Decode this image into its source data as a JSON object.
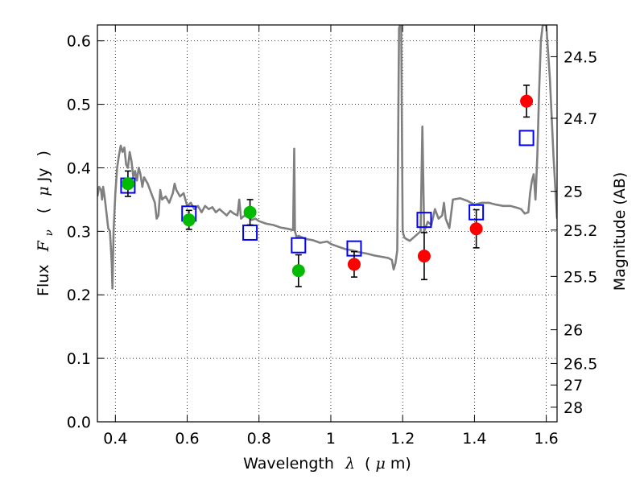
{
  "chart_data": {
    "type": "scatter",
    "title": "",
    "xlabel_parts": [
      "Wavelength",
      "λ",
      "(",
      "μ",
      "m)"
    ],
    "ylabel_parts": [
      "Flux",
      "F",
      "ν",
      "(",
      "μ",
      "Jy",
      ")"
    ],
    "y2label": "Magnitude (AB)",
    "xlim": [
      0.35,
      1.63
    ],
    "ylim": [
      0.0,
      0.625
    ],
    "grid": true,
    "x_ticks": [
      {
        "value": 0.4,
        "label": "0.4"
      },
      {
        "value": 0.6,
        "label": "0.6"
      },
      {
        "value": 0.8,
        "label": "0.8"
      },
      {
        "value": 1.0,
        "label": "1"
      },
      {
        "value": 1.2,
        "label": "1.2"
      },
      {
        "value": 1.4,
        "label": "1.4"
      },
      {
        "value": 1.6,
        "label": "1.6"
      }
    ],
    "y_ticks": [
      {
        "value": 0.0,
        "label": "0.0"
      },
      {
        "value": 0.1,
        "label": "0.1"
      },
      {
        "value": 0.2,
        "label": "0.2"
      },
      {
        "value": 0.3,
        "label": "0.3"
      },
      {
        "value": 0.4,
        "label": "0.4"
      },
      {
        "value": 0.5,
        "label": "0.5"
      },
      {
        "value": 0.6,
        "label": "0.6"
      }
    ],
    "y2_ticks": [
      {
        "flux": 0.575,
        "label": "24.5"
      },
      {
        "flux": 0.478,
        "label": "24.7"
      },
      {
        "flux": 0.363,
        "label": "25"
      },
      {
        "flux": 0.302,
        "label": "25.2"
      },
      {
        "flux": 0.229,
        "label": "25.5"
      },
      {
        "flux": 0.145,
        "label": "26"
      },
      {
        "flux": 0.092,
        "label": "26.5"
      },
      {
        "flux": 0.058,
        "label": "27"
      },
      {
        "flux": 0.023,
        "label": "28"
      }
    ],
    "series": [
      {
        "kind": "line",
        "color": "#808080",
        "points": [
          [
            0.35,
            0.355
          ],
          [
            0.355,
            0.37
          ],
          [
            0.36,
            0.365
          ],
          [
            0.363,
            0.35
          ],
          [
            0.366,
            0.37
          ],
          [
            0.37,
            0.355
          ],
          [
            0.375,
            0.33
          ],
          [
            0.38,
            0.305
          ],
          [
            0.385,
            0.3
          ],
          [
            0.39,
            0.25
          ],
          [
            0.392,
            0.21
          ],
          [
            0.395,
            0.3
          ],
          [
            0.4,
            0.36
          ],
          [
            0.405,
            0.4
          ],
          [
            0.41,
            0.42
          ],
          [
            0.415,
            0.435
          ],
          [
            0.42,
            0.425
          ],
          [
            0.425,
            0.432
          ],
          [
            0.43,
            0.405
          ],
          [
            0.435,
            0.4
          ],
          [
            0.44,
            0.425
          ],
          [
            0.445,
            0.41
          ],
          [
            0.45,
            0.385
          ],
          [
            0.455,
            0.395
          ],
          [
            0.46,
            0.38
          ],
          [
            0.465,
            0.4
          ],
          [
            0.47,
            0.39
          ],
          [
            0.475,
            0.37
          ],
          [
            0.48,
            0.385
          ],
          [
            0.49,
            0.375
          ],
          [
            0.5,
            0.36
          ],
          [
            0.51,
            0.345
          ],
          [
            0.515,
            0.32
          ],
          [
            0.52,
            0.325
          ],
          [
            0.525,
            0.365
          ],
          [
            0.53,
            0.35
          ],
          [
            0.54,
            0.355
          ],
          [
            0.55,
            0.345
          ],
          [
            0.56,
            0.36
          ],
          [
            0.565,
            0.375
          ],
          [
            0.57,
            0.365
          ],
          [
            0.58,
            0.355
          ],
          [
            0.59,
            0.36
          ],
          [
            0.6,
            0.34
          ],
          [
            0.61,
            0.345
          ],
          [
            0.62,
            0.335
          ],
          [
            0.63,
            0.34
          ],
          [
            0.64,
            0.33
          ],
          [
            0.65,
            0.34
          ],
          [
            0.66,
            0.335
          ],
          [
            0.67,
            0.338
          ],
          [
            0.68,
            0.33
          ],
          [
            0.69,
            0.335
          ],
          [
            0.7,
            0.33
          ],
          [
            0.71,
            0.325
          ],
          [
            0.72,
            0.332
          ],
          [
            0.73,
            0.328
          ],
          [
            0.74,
            0.325
          ],
          [
            0.745,
            0.35
          ],
          [
            0.75,
            0.32
          ],
          [
            0.76,
            0.325
          ],
          [
            0.77,
            0.322
          ],
          [
            0.78,
            0.318
          ],
          [
            0.79,
            0.32
          ],
          [
            0.8,
            0.316
          ],
          [
            0.82,
            0.312
          ],
          [
            0.84,
            0.31
          ],
          [
            0.86,
            0.306
          ],
          [
            0.88,
            0.304
          ],
          [
            0.895,
            0.302
          ],
          [
            0.898,
            0.43
          ],
          [
            0.9,
            0.3
          ],
          [
            0.905,
            0.29
          ],
          [
            0.91,
            0.293
          ],
          [
            0.93,
            0.288
          ],
          [
            0.95,
            0.286
          ],
          [
            0.97,
            0.282
          ],
          [
            0.99,
            0.284
          ],
          [
            1.0,
            0.28
          ],
          [
            1.02,
            0.276
          ],
          [
            1.04,
            0.272
          ],
          [
            1.06,
            0.27
          ],
          [
            1.08,
            0.267
          ],
          [
            1.1,
            0.265
          ],
          [
            1.12,
            0.262
          ],
          [
            1.14,
            0.26
          ],
          [
            1.16,
            0.258
          ],
          [
            1.17,
            0.255
          ],
          [
            1.175,
            0.24
          ],
          [
            1.18,
            0.25
          ],
          [
            1.185,
            0.27
          ],
          [
            1.19,
            0.62
          ],
          [
            1.193,
            0.625
          ],
          [
            1.196,
            0.625
          ],
          [
            1.2,
            0.3
          ],
          [
            1.205,
            0.29
          ],
          [
            1.21,
            0.288
          ],
          [
            1.22,
            0.285
          ],
          [
            1.23,
            0.29
          ],
          [
            1.24,
            0.295
          ],
          [
            1.25,
            0.3
          ],
          [
            1.255,
            0.465
          ],
          [
            1.26,
            0.3
          ],
          [
            1.27,
            0.315
          ],
          [
            1.28,
            0.31
          ],
          [
            1.29,
            0.335
          ],
          [
            1.3,
            0.32
          ],
          [
            1.31,
            0.325
          ],
          [
            1.315,
            0.345
          ],
          [
            1.32,
            0.32
          ],
          [
            1.33,
            0.305
          ],
          [
            1.34,
            0.35
          ],
          [
            1.36,
            0.352
          ],
          [
            1.38,
            0.348
          ],
          [
            1.4,
            0.342
          ],
          [
            1.42,
            0.345
          ],
          [
            1.44,
            0.345
          ],
          [
            1.46,
            0.342
          ],
          [
            1.48,
            0.34
          ],
          [
            1.5,
            0.34
          ],
          [
            1.52,
            0.337
          ],
          [
            1.53,
            0.335
          ],
          [
            1.54,
            0.328
          ],
          [
            1.55,
            0.33
          ],
          [
            1.555,
            0.36
          ],
          [
            1.56,
            0.38
          ],
          [
            1.565,
            0.39
          ],
          [
            1.57,
            0.35
          ],
          [
            1.575,
            0.42
          ],
          [
            1.58,
            0.52
          ],
          [
            1.585,
            0.6
          ],
          [
            1.59,
            0.625
          ],
          [
            1.6,
            0.625
          ],
          [
            1.61,
            0.54
          ],
          [
            1.62,
            0.42
          ],
          [
            1.63,
            0.32
          ]
        ]
      },
      {
        "kind": "open-square",
        "color": "#0000ff",
        "x": [
          0.435,
          0.605,
          0.775,
          0.91,
          1.065,
          1.26,
          1.405,
          1.545
        ],
        "y": [
          0.372,
          0.328,
          0.298,
          0.278,
          0.273,
          0.318,
          0.33,
          0.447
        ]
      },
      {
        "kind": "filled-circle",
        "color": "#00bb00",
        "x": [
          0.435,
          0.605,
          0.775,
          0.91
        ],
        "y": [
          0.375,
          0.318,
          0.33,
          0.238
        ],
        "err": [
          0.02,
          0.015,
          0.02,
          0.025
        ]
      },
      {
        "kind": "filled-circle",
        "color": "#ff0000",
        "x": [
          1.065,
          1.26,
          1.405,
          1.545
        ],
        "y": [
          0.248,
          0.261,
          0.304,
          0.505
        ],
        "err": [
          0.02,
          0.037,
          0.03,
          0.025
        ]
      }
    ]
  }
}
